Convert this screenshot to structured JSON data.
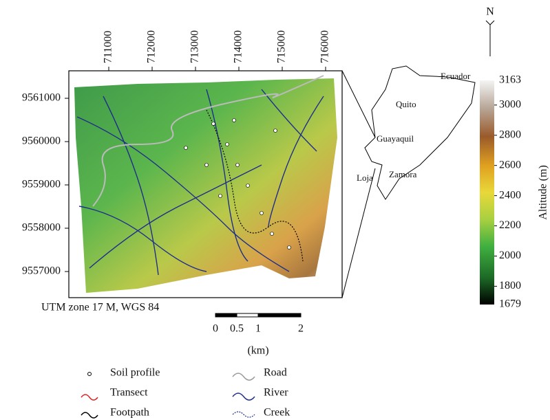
{
  "map": {
    "x_ticks": [
      711000,
      712000,
      713000,
      714000,
      715000,
      716000
    ],
    "y_ticks": [
      9561000,
      9560000,
      9559000,
      9558000,
      9557000
    ],
    "crs_note": "UTM zone 17 M, WGS 84"
  },
  "scale_bar": {
    "ticks": [
      0,
      0.5,
      1,
      2
    ],
    "unit": "(km)"
  },
  "inset": {
    "country": "Ecuador",
    "cities": [
      "Quito",
      "Guayaquil",
      "Loja",
      "Zamora"
    ]
  },
  "north": "N",
  "colorbar": {
    "title": "Altitude (m)",
    "range": [
      1679,
      3163
    ],
    "ticks": [
      3000,
      2800,
      2600,
      2400,
      2200,
      2000,
      1800
    ]
  },
  "legend": [
    {
      "label": "Soil profile"
    },
    {
      "label": "Transect"
    },
    {
      "label": "Footpath"
    },
    {
      "label": "Road"
    },
    {
      "label": "River"
    },
    {
      "label": "Creek"
    }
  ]
}
